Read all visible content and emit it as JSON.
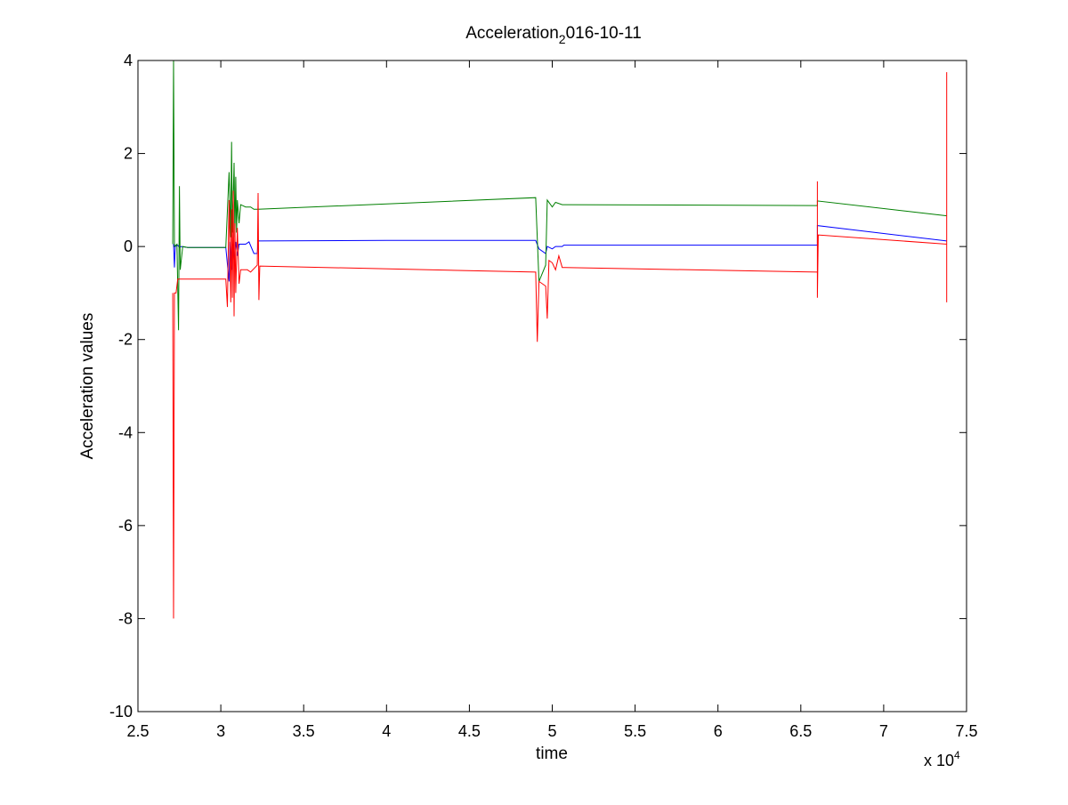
{
  "chart_data": {
    "type": "line",
    "title_main": "Acceleration",
    "title_sub": "2",
    "title_rest": "016-10-11",
    "xlabel": "time",
    "ylabel": "Acceleration values",
    "x_multiplier_base": "x 10",
    "x_multiplier_exp": "4",
    "xlim": [
      25000,
      75000
    ],
    "ylim": [
      -10,
      4
    ],
    "x_ticks": [
      25000,
      30000,
      35000,
      40000,
      45000,
      50000,
      55000,
      60000,
      65000,
      70000,
      75000
    ],
    "x_tick_labels": [
      "2.5",
      "3",
      "3.5",
      "4",
      "4.5",
      "5",
      "5.5",
      "6",
      "6.5",
      "7",
      "7.5"
    ],
    "y_ticks": [
      -10,
      -8,
      -6,
      -4,
      -2,
      0,
      2,
      4
    ],
    "y_tick_labels": [
      "-10",
      "-8",
      "-6",
      "-4",
      "-2",
      "0",
      "2",
      "4"
    ],
    "grid": false,
    "series": [
      {
        "color": "#0000ff",
        "points": [
          [
            27150,
            0.05
          ],
          [
            27200,
            -0.45
          ],
          [
            27250,
            0.0
          ],
          [
            27400,
            0.03
          ],
          [
            27500,
            -0.02
          ],
          [
            27600,
            0.0
          ],
          [
            28000,
            -0.02
          ],
          [
            29000,
            -0.02
          ],
          [
            30300,
            -0.02
          ],
          [
            30500,
            -0.75
          ],
          [
            30550,
            0.1
          ],
          [
            30650,
            -0.5
          ],
          [
            30700,
            0.05
          ],
          [
            30800,
            -0.3
          ],
          [
            30900,
            0.1
          ],
          [
            31000,
            -0.2
          ],
          [
            31100,
            0.05
          ],
          [
            31300,
            0.05
          ],
          [
            31500,
            0.05
          ],
          [
            31700,
            0.1
          ],
          [
            32000,
            -0.15
          ],
          [
            32200,
            -0.15
          ],
          [
            32250,
            0.12
          ],
          [
            40000,
            0.13
          ],
          [
            49000,
            0.13
          ],
          [
            49200,
            -0.05
          ],
          [
            49600,
            -0.15
          ],
          [
            49700,
            0.0
          ],
          [
            50000,
            -0.05
          ],
          [
            50200,
            0.0
          ],
          [
            50600,
            0.0
          ],
          [
            50700,
            0.03
          ],
          [
            66000,
            0.03
          ],
          [
            66000,
            0.45
          ],
          [
            73800,
            0.12
          ]
        ]
      },
      {
        "color": "#007f00",
        "points": [
          [
            27100,
            0.05
          ],
          [
            27150,
            4.0
          ],
          [
            27200,
            0.0
          ],
          [
            27350,
            0.05
          ],
          [
            27450,
            -1.8
          ],
          [
            27500,
            1.3
          ],
          [
            27550,
            -0.5
          ],
          [
            27700,
            0.0
          ],
          [
            28000,
            -0.02
          ],
          [
            30300,
            -0.02
          ],
          [
            30500,
            1.6
          ],
          [
            30600,
            0.2
          ],
          [
            30650,
            2.25
          ],
          [
            30700,
            0.3
          ],
          [
            30800,
            1.8
          ],
          [
            30850,
            0.2
          ],
          [
            30900,
            1.5
          ],
          [
            30950,
            0.3
          ],
          [
            31000,
            1.0
          ],
          [
            31100,
            0.5
          ],
          [
            31200,
            0.9
          ],
          [
            31500,
            0.85
          ],
          [
            31800,
            0.85
          ],
          [
            32000,
            0.8
          ],
          [
            32200,
            0.8
          ],
          [
            32250,
            0.8
          ],
          [
            49000,
            1.05
          ],
          [
            49200,
            -0.75
          ],
          [
            49600,
            -0.4
          ],
          [
            49700,
            1.0
          ],
          [
            50000,
            0.85
          ],
          [
            50200,
            0.95
          ],
          [
            50600,
            0.9
          ],
          [
            50700,
            0.9
          ],
          [
            66000,
            0.88
          ],
          [
            66000,
            0.98
          ],
          [
            73800,
            0.66
          ]
        ]
      },
      {
        "color": "#ff0000",
        "points": [
          [
            27100,
            -1.0
          ],
          [
            27150,
            -8.0
          ],
          [
            27200,
            -1.0
          ],
          [
            27300,
            -1.0
          ],
          [
            27400,
            -0.7
          ],
          [
            27600,
            -0.7
          ],
          [
            30000,
            -0.7
          ],
          [
            30300,
            -0.7
          ],
          [
            30400,
            -1.3
          ],
          [
            30500,
            1.0
          ],
          [
            30600,
            -1.2
          ],
          [
            30650,
            0.8
          ],
          [
            30700,
            -1.1
          ],
          [
            30750,
            1.2
          ],
          [
            30800,
            -1.5
          ],
          [
            30850,
            0.5
          ],
          [
            30900,
            -1.0
          ],
          [
            31000,
            0.4
          ],
          [
            31100,
            -0.8
          ],
          [
            31200,
            -0.5
          ],
          [
            31600,
            -0.5
          ],
          [
            31800,
            -0.55
          ],
          [
            32200,
            -0.4
          ],
          [
            32250,
            1.15
          ],
          [
            32300,
            -1.15
          ],
          [
            32350,
            -0.42
          ],
          [
            49000,
            -0.55
          ],
          [
            49100,
            -2.05
          ],
          [
            49200,
            -0.75
          ],
          [
            49600,
            -0.85
          ],
          [
            49700,
            -1.55
          ],
          [
            49800,
            -0.3
          ],
          [
            50000,
            -0.35
          ],
          [
            50200,
            -0.5
          ],
          [
            50400,
            -0.2
          ],
          [
            50600,
            -0.45
          ],
          [
            50700,
            -0.45
          ],
          [
            66000,
            -0.55
          ],
          [
            66000,
            1.4
          ],
          [
            66000,
            -1.1
          ],
          [
            66050,
            0.25
          ],
          [
            73800,
            0.05
          ],
          [
            73800,
            3.75
          ],
          [
            73800,
            -1.2
          ]
        ]
      }
    ]
  }
}
